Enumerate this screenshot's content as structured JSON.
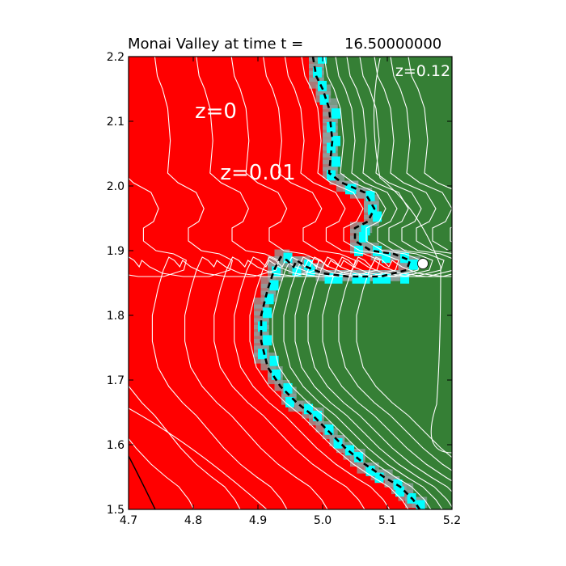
{
  "chart_data": {
    "type": "heatmap",
    "title_prefix": "Monai Valley at time t =",
    "title_value": "16.50000000",
    "xlim": [
      4.7,
      5.2
    ],
    "ylim": [
      1.5,
      2.2
    ],
    "x_ticks": [
      4.7,
      4.8,
      4.9,
      5.0,
      5.1,
      5.2
    ],
    "x_tick_labels": [
      "4.7",
      "4.8",
      "4.9",
      "5.0",
      "5.1",
      "5.2"
    ],
    "y_ticks": [
      1.5,
      1.6,
      1.7,
      1.8,
      1.9,
      2.0,
      2.1,
      2.2
    ],
    "y_tick_labels": [
      "1.5",
      "1.6",
      "1.7",
      "1.8",
      "1.9",
      "2.0",
      "2.1",
      "2.2"
    ],
    "annotations": [
      {
        "text": "z=0",
        "x": 4.835,
        "y": 2.105
      },
      {
        "text": "z=0.01",
        "x": 4.9,
        "y": 2.01
      },
      {
        "text": "z=0.12",
        "x": 5.155,
        "y": 2.17
      }
    ],
    "marker": {
      "x": 5.155,
      "y": 1.88,
      "color": "#ffffff"
    },
    "shoreline": [
      [
        4.985,
        2.2
      ],
      [
        4.99,
        2.17
      ],
      [
        5.0,
        2.15
      ],
      [
        5.01,
        2.12
      ],
      [
        5.015,
        2.07
      ],
      [
        5.01,
        2.02
      ],
      [
        5.03,
        2.005
      ],
      [
        5.065,
        1.99
      ],
      [
        5.08,
        1.965
      ],
      [
        5.07,
        1.945
      ],
      [
        5.05,
        1.935
      ],
      [
        5.05,
        1.915
      ],
      [
        5.075,
        1.9
      ],
      [
        5.11,
        1.895
      ],
      [
        5.135,
        1.885
      ],
      [
        5.13,
        1.87
      ],
      [
        5.09,
        1.86
      ],
      [
        5.04,
        1.86
      ],
      [
        5.0,
        1.865
      ],
      [
        4.975,
        1.875
      ],
      [
        4.96,
        1.885
      ],
      [
        4.955,
        1.875
      ],
      [
        4.945,
        1.885
      ],
      [
        4.935,
        1.89
      ],
      [
        4.925,
        1.87
      ],
      [
        4.915,
        1.84
      ],
      [
        4.905,
        1.8
      ],
      [
        4.905,
        1.76
      ],
      [
        4.915,
        1.72
      ],
      [
        4.935,
        1.69
      ],
      [
        4.96,
        1.665
      ],
      [
        4.985,
        1.645
      ],
      [
        5.01,
        1.62
      ],
      [
        5.035,
        1.595
      ],
      [
        5.065,
        1.57
      ],
      [
        5.095,
        1.55
      ],
      [
        5.12,
        1.535
      ],
      [
        5.14,
        1.515
      ],
      [
        5.15,
        1.5
      ]
    ],
    "colors": {
      "dry": "#ff0000",
      "wet": "#357f35",
      "shore": "#00ffff",
      "smear": "#8fa09f",
      "contour": "#ffffff",
      "black_contour": "#000000"
    },
    "grid": false
  }
}
